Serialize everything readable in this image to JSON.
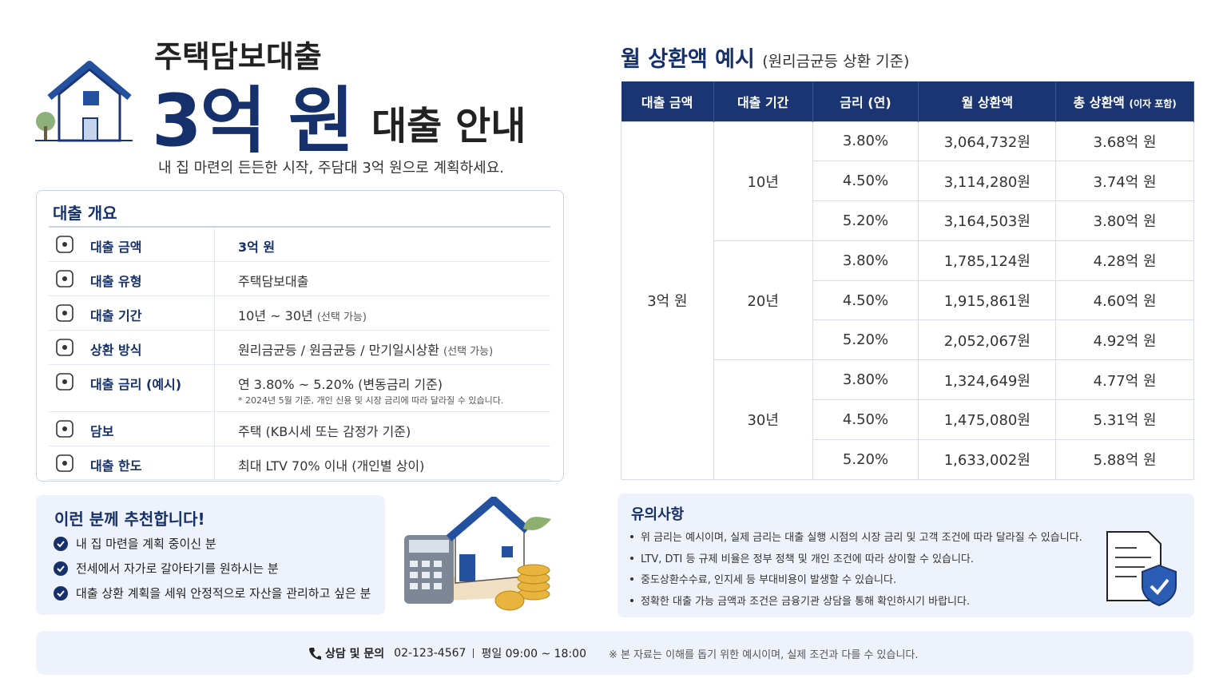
{
  "header": {
    "title_top": "주택담보대출",
    "amount": "3억 원",
    "title_suffix": "대출 안내",
    "subtitle": "내 집 마련의 든든한 시작, 주담대 3억 원으로 계획하세요."
  },
  "overview": {
    "title": "대출 개요",
    "rows": [
      {
        "label": "대출 금액",
        "value": "3억 원"
      },
      {
        "label": "대출 유형",
        "value": "주택담보대출"
      },
      {
        "label": "대출 기간",
        "value": "10년 ~ 30년",
        "value_note": "(선택 가능)"
      },
      {
        "label": "상환 방식",
        "value": "원리금균등 / 원금균등 / 만기일시상환",
        "value_note": "(선택 가능)"
      },
      {
        "label": "대출 금리 (예시)",
        "value": "연 3.80% ~ 5.20%",
        "value_note": "(변동금리 기준)",
        "footnote": "* 2024년 5월 기준, 개인 신용 및 시장 금리에 따라 달라질 수 있습니다."
      },
      {
        "label": "담보",
        "value": "주택 (KB시세 또는 감정가 기준)"
      },
      {
        "label": "대출 한도",
        "value": "최대 LTV 70% 이내 (개인별 상이)"
      }
    ]
  },
  "recommend": {
    "title": "이런 분께 추천합니다!",
    "items": [
      "내 집 마련을 계획 중이신 분",
      "전세에서 자가로 갈아타기를 원하시는 분",
      "대출 상환 계획을 세워 안정적으로 자산을 관리하고 싶은 분"
    ]
  },
  "schedule": {
    "title": "월 상환액 예시",
    "title_note": "(원리금균등 상환 기준)",
    "headers": [
      {
        "text": "대출 금액"
      },
      {
        "text": "대출 기간"
      },
      {
        "text": "금리 (연)"
      },
      {
        "text": "월 상환액"
      },
      {
        "text": "총 상환액",
        "note": "(이자 포함)"
      }
    ],
    "loan_amount": "3억 원",
    "groups": [
      {
        "term": "10년",
        "rows": [
          [
            "3.80%",
            "3,064,732원",
            "3.68억 원"
          ],
          [
            "4.50%",
            "3,114,280원",
            "3.74억 원"
          ],
          [
            "5.20%",
            "3,164,503원",
            "3.80억 원"
          ]
        ]
      },
      {
        "term": "20년",
        "rows": [
          [
            "3.80%",
            "1,785,124원",
            "4.28억 원"
          ],
          [
            "4.50%",
            "1,915,861원",
            "4.60억 원"
          ],
          [
            "5.20%",
            "2,052,067원",
            "4.92억 원"
          ]
        ]
      },
      {
        "term": "30년",
        "rows": [
          [
            "3.80%",
            "1,324,649원",
            "4.77억 원"
          ],
          [
            "4.50%",
            "1,475,080원",
            "5.31억 원"
          ],
          [
            "5.20%",
            "1,633,002원",
            "5.88억 원"
          ]
        ]
      }
    ]
  },
  "notice": {
    "title": "유의사항",
    "items": [
      "위 금리는 예시이며, 실제 금리는 대출 실행 시점의 시장 금리 및 고객 조건에 따라 달라질 수 있습니다.",
      "LTV, DTI 등 규제 비율은 정부 정책 및 개인 조건에 따라 상이할 수 있습니다.",
      "중도상환수수료, 인지세 등 부대비용이 발생할 수 있습니다.",
      "정확한 대출 가능 금액과 조건은 금융기관 상담을 통해 확인하시기 바랍니다."
    ]
  },
  "footer": {
    "contact_label": "상담 및 문의",
    "phone": "02-123-4567",
    "hours": "평일 09:00 ~ 18:00",
    "disclaimer": "※ 본 자료는 이해를 돕기 위한 예시이며, 실제 조건과 다를 수 있습니다."
  }
}
